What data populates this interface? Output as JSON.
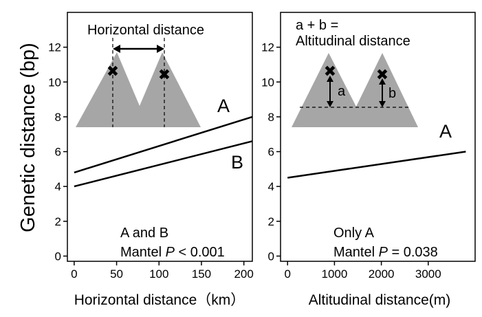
{
  "figure": {
    "ylabel": "Genetic distance (bp)"
  },
  "chart_data": [
    {
      "type": "line",
      "panel": "left",
      "xlabel": "Horizontal distance（km）",
      "ylabel": "Genetic distance (bp)",
      "xlim": [
        -8,
        210
      ],
      "ylim": [
        -0.3,
        14
      ],
      "xticks": [
        "0",
        "50",
        "100",
        "150",
        "200"
      ],
      "yticks": [
        "0",
        "2",
        "4",
        "6",
        "8",
        "10",
        "12"
      ],
      "series": [
        {
          "name": "A",
          "x": [
            0,
            210
          ],
          "y": [
            4.8,
            8.0
          ]
        },
        {
          "name": "B",
          "x": [
            0,
            210
          ],
          "y": [
            4.0,
            6.6
          ]
        }
      ],
      "inset": {
        "title": "Horizontal distance",
        "markers": [
          "✖",
          "✖"
        ]
      },
      "annotation": {
        "line1": "A and B",
        "line2_prefix": "Mantel ",
        "line2_italic": "P",
        "line2_suffix": " < 0.001"
      }
    },
    {
      "type": "line",
      "panel": "right",
      "xlabel": "Altitudinal distance(m)",
      "ylabel": "",
      "xlim": [
        -150,
        4000
      ],
      "ylim": [
        -0.3,
        14
      ],
      "xticks": [
        "0",
        "1000",
        "2000",
        "3000"
      ],
      "yticks": [
        "0",
        "2",
        "4",
        "6",
        "8",
        "10",
        "12"
      ],
      "series": [
        {
          "name": "A",
          "x": [
            0,
            3800
          ],
          "y": [
            4.5,
            6.0
          ]
        }
      ],
      "inset": {
        "title_line1": "a + b =",
        "title_line2": "Altitudinal distance",
        "label_a": "a",
        "label_b": "b",
        "markers": [
          "✖",
          "✖"
        ]
      },
      "annotation": {
        "line1": "Only A",
        "line2_prefix": "Mantel ",
        "line2_italic": "P",
        "line2_suffix": " = 0.038"
      }
    }
  ]
}
